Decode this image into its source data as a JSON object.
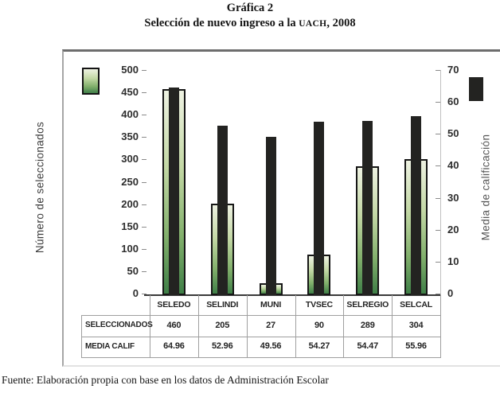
{
  "title": "Gráfica 2",
  "subtitle": {
    "prefix": "Selección de nuevo ingreso a la ",
    "acronym": "UACH",
    "suffix": ", 2008"
  },
  "source_note": "Fuente: Elaboración propia con base en los datos de Administración Escolar",
  "chart_data": {
    "type": "bar",
    "title": "Selección de nuevo ingreso a la UACH, 2008",
    "categories": [
      "SELEDO",
      "SELINDI",
      "MUNI",
      "TVSEC",
      "SELREGIO",
      "SELCAL"
    ],
    "series": [
      {
        "name": "SELECCIONADOS",
        "axis": "left",
        "style": "green-gradient",
        "values": [
          460,
          205,
          27,
          90,
          289,
          304
        ]
      },
      {
        "name": "MEDIA CALIF",
        "axis": "right",
        "style": "black",
        "values": [
          64.96,
          52.96,
          49.56,
          54.27,
          54.47,
          55.96
        ]
      }
    ],
    "left_axis": {
      "label": "Número de seleccionados",
      "min": 0,
      "max": 500,
      "step": 50
    },
    "right_axis": {
      "label": "Media  de calificación",
      "min": 0,
      "max": 70,
      "step": 10
    },
    "grid": false,
    "legend": {
      "green_swatch": "SELECCIONADOS",
      "black_swatch": "MEDIA CALIF",
      "position": "top-corners"
    },
    "data_table": {
      "row_headers": [
        "SELECCIONADOS",
        "MEDIA CALIF"
      ],
      "rows": [
        [
          "460",
          "205",
          "27",
          "90",
          "289",
          "304"
        ],
        [
          "64.96",
          "52.96",
          "49.56",
          "54.27",
          "54.47",
          "55.96"
        ]
      ]
    }
  },
  "colors": {
    "bar_green_top": "#eef2e2",
    "bar_green_bottom": "#3f7f47",
    "bar_black": "#232321",
    "panel_border_top": "#6d6d6d",
    "panel_border_left": "#a6a6a6",
    "panel_border_bottom": "#e2e2e2",
    "grid_line": "#9f9f9f",
    "axis_line": "#3a3a3a"
  }
}
